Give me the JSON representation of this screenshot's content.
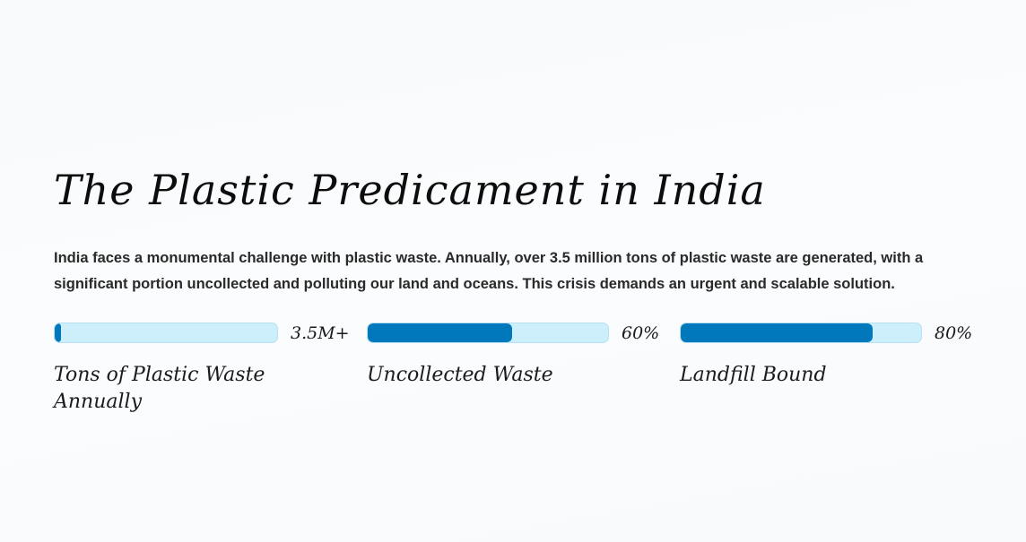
{
  "section": {
    "title": "The Plastic Predicament in India",
    "intro": "India faces a monumental challenge with plastic waste. Annually, over 3.5 million tons of plastic waste are generated, with a significant portion uncollected and polluting our land and oceans. This crisis demands an urgent and scalable solution."
  },
  "stats": [
    {
      "value": "3.5M+",
      "label": "Tons of Plastic Waste Annually",
      "fill_fraction": 0.03
    },
    {
      "value": "60%",
      "label": "Uncollected Waste",
      "fill_fraction": 0.6
    },
    {
      "value": "80%",
      "label": "Landfill Bound",
      "fill_fraction": 0.8
    }
  ],
  "colors": {
    "bar_fill": "#0078bb",
    "bar_track": "#cdeefb"
  }
}
